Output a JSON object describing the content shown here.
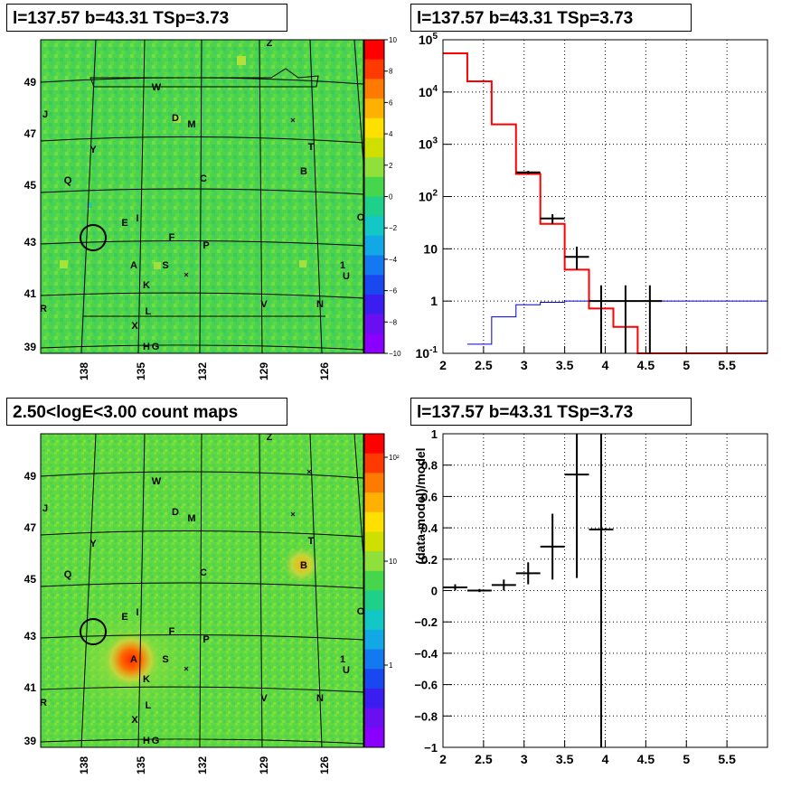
{
  "panels": {
    "top_left_title": "l=137.57 b=43.31 TSp=3.73",
    "top_right_title": "l=137.57 b=43.31 TSp=3.73",
    "bottom_left_title": "2.50<logE<3.00 count maps",
    "bottom_right_title": "l=137.57 b=43.31 TSp=3.73"
  },
  "colors": {
    "map_green": "#49d64a",
    "red_model": "#ff0000",
    "blue_model": "#0000cc",
    "data": "#000000"
  },
  "chart_data": [
    {
      "type": "heatmap",
      "title": "l=137.57 b=43.31 TSp=3.73",
      "x_ticks": [
        "138",
        "135",
        "132",
        "129",
        "126"
      ],
      "y_ticks": [
        "49",
        "47",
        "45",
        "43",
        "41",
        "39"
      ],
      "colorbar_ticks": [
        "10",
        "8",
        "6",
        "4",
        "2",
        "0",
        "−2",
        "−4",
        "−6",
        "−8",
        "−10"
      ],
      "zlim": [
        -10,
        10
      ],
      "source_labels": [
        "Z",
        "W",
        "J",
        "D",
        "M",
        "Y",
        "T",
        "Q",
        "B",
        "C",
        "O",
        "E",
        "I",
        "F",
        "P",
        "A",
        "S",
        "K",
        "U",
        "R",
        "L",
        "V",
        "N",
        "X",
        "H",
        "G"
      ]
    },
    {
      "type": "line",
      "title": "l=137.57 b=43.31 TSp=3.73",
      "log_y": true,
      "xlim": [
        2,
        6
      ],
      "ylim": [
        0.1,
        100000
      ],
      "x_ticks": [
        "2",
        "2.5",
        "3",
        "3.5",
        "4",
        "4.5",
        "5",
        "5.5"
      ],
      "y_ticks": [
        "10^5",
        "10^4",
        "10^3",
        "10^2",
        "10",
        "1",
        "10^-1"
      ],
      "series": [
        {
          "style": "step",
          "color": "#ff0000",
          "edges": [
            2.0,
            2.3,
            2.6,
            2.9,
            3.2,
            3.5,
            3.8,
            4.1,
            4.4,
            4.7,
            6.0
          ],
          "values": [
            55000,
            16000,
            2400,
            270,
            30,
            4,
            0.72,
            0.32,
            0.1,
            0.1
          ]
        },
        {
          "style": "step",
          "color": "#0000cc",
          "edges": [
            2.3,
            2.6,
            2.9,
            3.2,
            3.5,
            3.8,
            4.1,
            4.4,
            4.7,
            6.0
          ],
          "values": [
            0.15,
            0.5,
            0.85,
            0.95,
            1.0,
            1.0,
            1.0,
            1.0,
            1.0
          ]
        },
        {
          "style": "errorbar",
          "color": "#000000",
          "points": [
            {
              "x": 3.05,
              "y": 290,
              "xerr": 0.15,
              "ylo": 270,
              "yhi": 310
            },
            {
              "x": 3.35,
              "y": 38,
              "xerr": 0.15,
              "ylo": 30,
              "yhi": 46
            },
            {
              "x": 3.65,
              "y": 7,
              "xerr": 0.15,
              "ylo": 4,
              "yhi": 11
            },
            {
              "x": 3.95,
              "y": 1,
              "xerr": 0.15,
              "ylo": 0.1,
              "yhi": 2
            },
            {
              "x": 4.25,
              "y": 1,
              "xerr": 0.15,
              "ylo": 0.1,
              "yhi": 2
            },
            {
              "x": 4.55,
              "y": 1,
              "xerr": 0.15,
              "ylo": 0.1,
              "yhi": 2
            }
          ]
        }
      ]
    },
    {
      "type": "heatmap",
      "title": "2.50<logE<3.00 count maps",
      "x_ticks": [
        "138",
        "135",
        "132",
        "129",
        "126"
      ],
      "y_ticks": [
        "49",
        "47",
        "45",
        "43",
        "41",
        "39"
      ],
      "colorbar_ticks": [
        "10²",
        "10",
        "1"
      ],
      "log_z": true,
      "source_labels": [
        "Z",
        "W",
        "J",
        "D",
        "M",
        "Y",
        "T",
        "Q",
        "B",
        "C",
        "O",
        "E",
        "I",
        "F",
        "P",
        "A",
        "S",
        "K",
        "U",
        "R",
        "L",
        "V",
        "N",
        "X",
        "H",
        "G"
      ]
    },
    {
      "type": "scatter",
      "title": "l=137.57 b=43.31 TSp=3.73",
      "ylabel": "(data-model)/model",
      "xlim": [
        2,
        6
      ],
      "ylim": [
        -1,
        1
      ],
      "x_ticks": [
        "2",
        "2.5",
        "3",
        "3.5",
        "4",
        "4.5",
        "5",
        "5.5"
      ],
      "y_ticks": [
        "1",
        "0.8",
        "0.6",
        "0.4",
        "0.2",
        "0",
        "−0.2",
        "−0.4",
        "−0.6",
        "−0.8",
        "−1"
      ],
      "points": [
        {
          "x": 2.15,
          "y": 0.02,
          "xerr": 0.15,
          "ylo": 0.0,
          "yhi": 0.04
        },
        {
          "x": 2.45,
          "y": 0.0,
          "xerr": 0.15,
          "ylo": -0.01,
          "yhi": 0.01
        },
        {
          "x": 2.75,
          "y": 0.035,
          "xerr": 0.15,
          "ylo": 0.0,
          "yhi": 0.07
        },
        {
          "x": 3.05,
          "y": 0.11,
          "xerr": 0.15,
          "ylo": 0.04,
          "yhi": 0.18
        },
        {
          "x": 3.35,
          "y": 0.28,
          "xerr": 0.15,
          "ylo": 0.07,
          "yhi": 0.49
        },
        {
          "x": 3.65,
          "y": 0.74,
          "xerr": 0.15,
          "ylo": 0.08,
          "yhi": 1.0
        },
        {
          "x": 3.95,
          "y": 0.39,
          "xerr": 0.15,
          "ylo": -1.0,
          "yhi": 1.0
        }
      ]
    }
  ]
}
